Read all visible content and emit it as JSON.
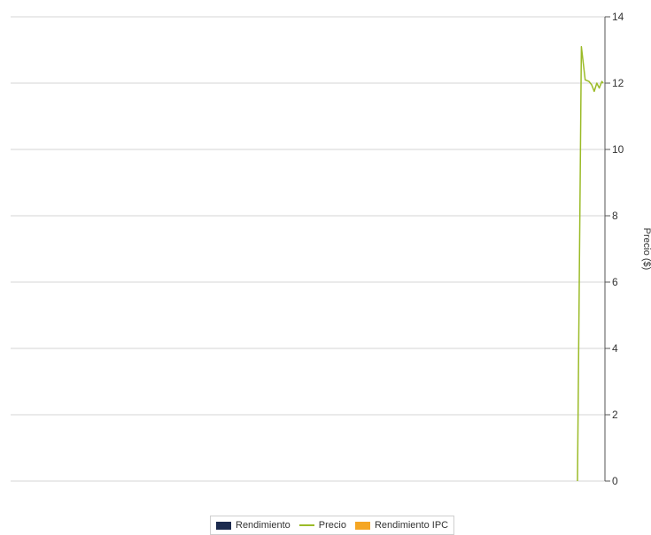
{
  "chart_data": {
    "type": "line",
    "title": "",
    "xlabel": "",
    "ylabel": "Precio ($)",
    "y_axis_position": "right",
    "ylim": [
      0,
      14
    ],
    "yticks": [
      0,
      2,
      4,
      6,
      8,
      10,
      12,
      14
    ],
    "grid": true,
    "legend_position": "bottom-center",
    "series": [
      {
        "name": "Precio",
        "color": "#9bbb28",
        "x": [
          0,
          0.15,
          0.3,
          0.45,
          0.55,
          0.65,
          0.75,
          0.85,
          0.95,
          1.0
        ],
        "y": [
          0,
          13.1,
          12.1,
          12.05,
          11.95,
          11.75,
          12.0,
          11.85,
          12.05,
          12.0
        ]
      }
    ],
    "legend": [
      {
        "name": "Rendimiento",
        "color": "#1b2a4e",
        "marker": "box"
      },
      {
        "name": "Precio",
        "color": "#9bbb28",
        "marker": "line"
      },
      {
        "name": "Rendimiento IPC",
        "color": "#f5a623",
        "marker": "box"
      }
    ]
  }
}
